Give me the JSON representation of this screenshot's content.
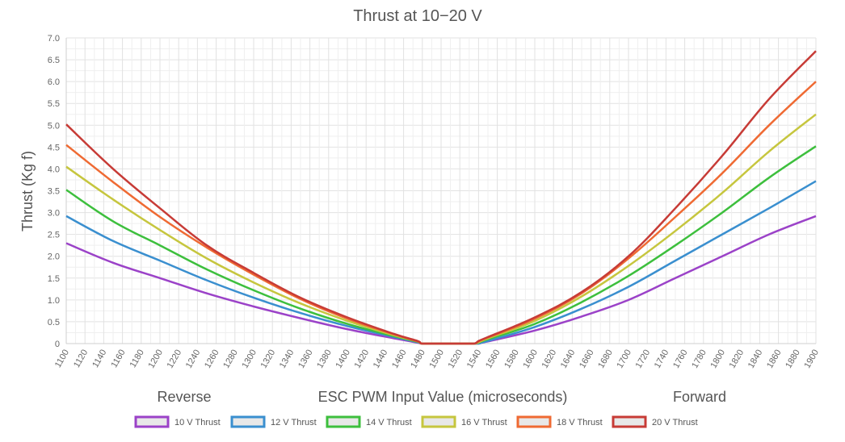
{
  "chart_data": {
    "type": "line",
    "title": "Thrust at 10−20 V",
    "xlabel": "ESC PWM Input Value (microseconds)",
    "ylabel": "Thrust (Kg f)",
    "region_labels": {
      "left": "Reverse",
      "right": "Forward"
    },
    "xlim": [
      1100,
      1900
    ],
    "ylim": [
      0,
      7.0
    ],
    "x_ticks": [
      1100,
      1120,
      1140,
      1160,
      1180,
      1200,
      1220,
      1240,
      1260,
      1280,
      1300,
      1320,
      1340,
      1360,
      1380,
      1400,
      1420,
      1440,
      1460,
      1480,
      1500,
      1520,
      1540,
      1560,
      1580,
      1600,
      1620,
      1640,
      1660,
      1680,
      1700,
      1720,
      1740,
      1760,
      1780,
      1800,
      1820,
      1840,
      1860,
      1880,
      1900
    ],
    "y_ticks": [
      "0",
      "0.5",
      "1.0",
      "1.5",
      "2.0",
      "2.5",
      "3.0",
      "3.5",
      "4.0",
      "4.5",
      "5.0",
      "5.5",
      "6.0",
      "6.5",
      "7.0"
    ],
    "grid": true,
    "legend_position": "bottom",
    "x": [
      1100,
      1150,
      1200,
      1250,
      1300,
      1350,
      1400,
      1450,
      1475,
      1480,
      1500,
      1520,
      1535,
      1540,
      1550,
      1600,
      1650,
      1700,
      1750,
      1800,
      1850,
      1900
    ],
    "series": [
      {
        "name": "10 V Thrust",
        "color": "#9b42c8",
        "values": [
          2.3,
          1.85,
          1.5,
          1.15,
          0.85,
          0.58,
          0.33,
          0.12,
          0.02,
          0,
          0,
          0,
          0,
          0,
          0.05,
          0.3,
          0.62,
          1.0,
          1.5,
          2.0,
          2.5,
          2.92
        ]
      },
      {
        "name": "12 V Thrust",
        "color": "#3a8fcf",
        "values": [
          2.92,
          2.35,
          1.9,
          1.45,
          1.05,
          0.7,
          0.4,
          0.15,
          0.03,
          0,
          0,
          0,
          0,
          0,
          0.06,
          0.38,
          0.8,
          1.3,
          1.9,
          2.5,
          3.1,
          3.72
        ]
      },
      {
        "name": "14 V Thrust",
        "color": "#3dbf3d",
        "values": [
          3.52,
          2.8,
          2.25,
          1.7,
          1.22,
          0.8,
          0.45,
          0.17,
          0.04,
          0,
          0,
          0,
          0,
          0.02,
          0.1,
          0.45,
          0.95,
          1.55,
          2.25,
          3.0,
          3.8,
          4.52
        ]
      },
      {
        "name": "16 V Thrust",
        "color": "#c6c63e",
        "values": [
          4.05,
          3.3,
          2.6,
          1.95,
          1.4,
          0.92,
          0.52,
          0.19,
          0.05,
          0,
          0,
          0,
          0,
          0.03,
          0.12,
          0.52,
          1.08,
          1.78,
          2.58,
          3.45,
          4.4,
          5.25
        ]
      },
      {
        "name": "18 V Thrust",
        "color": "#ef6a33",
        "values": [
          4.55,
          3.7,
          2.9,
          2.2,
          1.58,
          1.02,
          0.57,
          0.21,
          0.05,
          0,
          0,
          0,
          0,
          0.05,
          0.14,
          0.57,
          1.15,
          1.95,
          2.9,
          3.9,
          5.0,
          6.0
        ]
      },
      {
        "name": "20 V Thrust",
        "color": "#c73b36",
        "values": [
          5.02,
          4.0,
          3.1,
          2.25,
          1.62,
          1.05,
          0.6,
          0.22,
          0.06,
          0,
          0,
          0,
          0,
          0.06,
          0.15,
          0.6,
          1.18,
          2.0,
          3.1,
          4.3,
          5.6,
          6.7
        ]
      }
    ]
  }
}
